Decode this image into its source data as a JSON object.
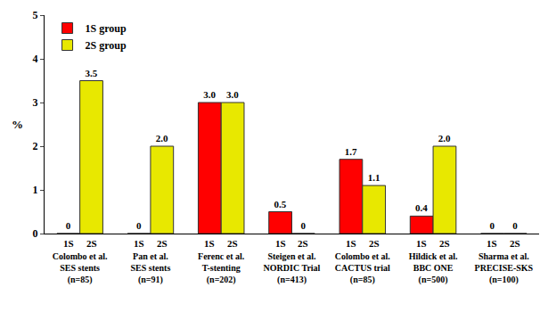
{
  "chart_data": {
    "type": "bar",
    "y_label": "%",
    "categories": [
      "Colombo et al.\nSES stents\n(n=85)",
      "Pan et al.\nSES stents\n(n=91)",
      "Ferenc et al.\nT-stenting\n(n=202)",
      "Steigen et al.\nNORDIC Trial\n(n=413)",
      "Colombo et al.\nCACTUS trial\n(n=85)",
      "Hildick et al.\nBBC ONE\n(n=500)",
      "Sharma et al.\nPRECISE-SKS\n(n=100)"
    ],
    "series": [
      {
        "name": "1S group",
        "label": "1S",
        "color": "#ff0000",
        "values": [
          0,
          0,
          3.0,
          0.5,
          1.7,
          0.4,
          0
        ],
        "value_labels": [
          "0",
          "0",
          "3.0",
          "0.5",
          "1.7",
          "0.4",
          "0"
        ]
      },
      {
        "name": "2S group",
        "label": "2S",
        "color": "#e8e800",
        "values": [
          3.5,
          2.0,
          3.0,
          0,
          1.1,
          2.0,
          0
        ],
        "value_labels": [
          "3.5",
          "2.0",
          "3.0",
          "0",
          "1.1",
          "2.0",
          "0"
        ]
      }
    ],
    "ylim": [
      0,
      5
    ],
    "yticks": [
      0,
      1,
      2,
      3,
      4,
      5
    ],
    "grid": false,
    "legend": "top left",
    "data_labels": true
  }
}
